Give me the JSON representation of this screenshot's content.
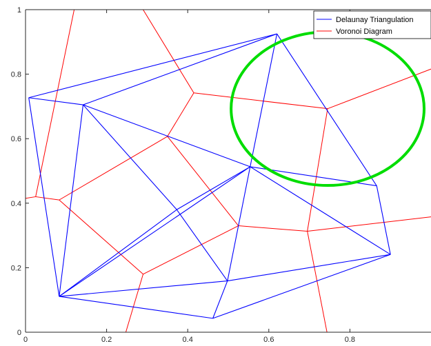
{
  "chart_data": {
    "type": "line",
    "title": "",
    "xlabel": "",
    "ylabel": "",
    "xlim": [
      0,
      1
    ],
    "ylim": [
      0,
      1
    ],
    "x_ticks": [
      "0",
      "0.2",
      "0.4",
      "0.6",
      "0.8"
    ],
    "y_ticks": [
      "0",
      "0.2",
      "0.4",
      "0.6",
      "0.8",
      "1"
    ],
    "grid": false,
    "legend_position": "top-right",
    "colors": {
      "delaunay": "#0000ff",
      "voronoi": "#ff0000",
      "circle": "#00dd00"
    },
    "legend": [
      {
        "label": "Delaunay Triangulation",
        "color": "#0000ff"
      },
      {
        "label": "Voronoi Diagram",
        "color": "#ff0000"
      }
    ],
    "points": [
      {
        "x": 0.008,
        "y": 0.727
      },
      {
        "x": 0.142,
        "y": 0.705
      },
      {
        "x": 0.62,
        "y": 0.925
      },
      {
        "x": 0.554,
        "y": 0.513
      },
      {
        "x": 0.373,
        "y": 0.38
      },
      {
        "x": 0.9,
        "y": 0.241
      },
      {
        "x": 0.866,
        "y": 0.454
      },
      {
        "x": 0.083,
        "y": 0.111
      },
      {
        "x": 0.498,
        "y": 0.159
      },
      {
        "x": 0.462,
        "y": 0.043
      }
    ],
    "delaunay_edges": [
      [
        0,
        1
      ],
      [
        0,
        2
      ],
      [
        1,
        2
      ],
      [
        2,
        3
      ],
      [
        2,
        6
      ],
      [
        1,
        3
      ],
      [
        3,
        6
      ],
      [
        3,
        4
      ],
      [
        1,
        4
      ],
      [
        0,
        7
      ],
      [
        1,
        7
      ],
      [
        4,
        7
      ],
      [
        3,
        7
      ],
      [
        4,
        8
      ],
      [
        3,
        8
      ],
      [
        6,
        5
      ],
      [
        3,
        5
      ],
      [
        8,
        5
      ],
      [
        7,
        8
      ],
      [
        7,
        9
      ],
      [
        9,
        5
      ],
      [
        8,
        9
      ]
    ],
    "voronoi_segments": [
      [
        [
          0.29,
          1.0
        ],
        [
          0.415,
          0.742
        ]
      ],
      [
        [
          0.12,
          1.0
        ],
        [
          0.025,
          0.42
        ]
      ],
      [
        [
          0.415,
          0.742
        ],
        [
          0.745,
          0.693
        ]
      ],
      [
        [
          0.415,
          0.742
        ],
        [
          0.35,
          0.607
        ]
      ],
      [
        [
          0.35,
          0.607
        ],
        [
          0.083,
          0.41
        ]
      ],
      [
        [
          0.083,
          0.41
        ],
        [
          0.025,
          0.42
        ]
      ],
      [
        [
          0.025,
          0.42
        ],
        [
          -0.01,
          0.413
        ]
      ],
      [
        [
          0.745,
          0.693
        ],
        [
          1.05,
          0.84
        ]
      ],
      [
        [
          0.745,
          0.693
        ],
        [
          0.695,
          0.313
        ]
      ],
      [
        [
          0.35,
          0.607
        ],
        [
          0.525,
          0.33
        ]
      ],
      [
        [
          0.525,
          0.33
        ],
        [
          0.695,
          0.313
        ]
      ],
      [
        [
          0.695,
          0.313
        ],
        [
          1.05,
          0.365
        ]
      ],
      [
        [
          0.695,
          0.313
        ],
        [
          0.745,
          -0.01
        ]
      ],
      [
        [
          0.525,
          0.33
        ],
        [
          0.29,
          0.18
        ]
      ],
      [
        [
          0.083,
          0.41
        ],
        [
          0.29,
          0.18
        ]
      ],
      [
        [
          0.29,
          0.18
        ],
        [
          0.245,
          -0.01
        ]
      ]
    ],
    "circle": {
      "cx": 0.745,
      "cy": 0.693,
      "r": 0.238
    }
  }
}
